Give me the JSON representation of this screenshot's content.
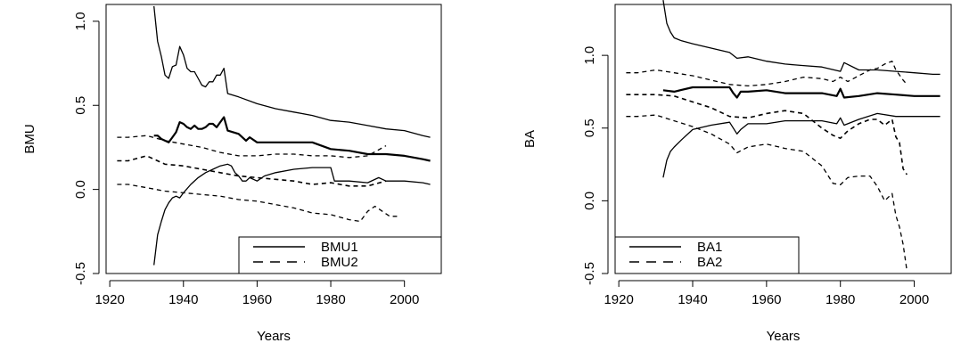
{
  "chart_data": [
    {
      "type": "line",
      "title": "",
      "xlabel": "Years",
      "ylabel": "BMU",
      "xlim": [
        1919,
        2010
      ],
      "ylim": [
        -0.5,
        1.1
      ],
      "x_ticks": [
        1920,
        1940,
        1960,
        1980,
        2000
      ],
      "y_ticks": [
        -0.5,
        0.0,
        0.5,
        1.0
      ],
      "x_tick_labels": [
        "1920",
        "1940",
        "1960",
        "1980",
        "2000"
      ],
      "y_tick_labels": [
        "-0.5",
        "0.0",
        "0.5",
        "1.0"
      ],
      "grid": false,
      "legend_position": "bottom-right",
      "legend": [
        {
          "name": "BMU1",
          "style": "solid"
        },
        {
          "name": "BMU2",
          "style": "dashed"
        }
      ],
      "series": [
        {
          "group": "BMU1",
          "role": "upper",
          "style": "solid",
          "width": 1.3,
          "x": [
            1932,
            1933,
            1934,
            1935,
            1936,
            1937,
            1938,
            1939,
            1940,
            1941,
            1942,
            1943,
            1944,
            1945,
            1946,
            1947,
            1948,
            1949,
            1950,
            1951,
            1952,
            1955,
            1960,
            1965,
            1970,
            1975,
            1980,
            1985,
            1990,
            1995,
            2000,
            2005,
            2007
          ],
          "y": [
            1.09,
            0.88,
            0.79,
            0.68,
            0.66,
            0.73,
            0.74,
            0.85,
            0.8,
            0.72,
            0.7,
            0.7,
            0.66,
            0.62,
            0.61,
            0.64,
            0.64,
            0.68,
            0.68,
            0.72,
            0.57,
            0.55,
            0.51,
            0.48,
            0.46,
            0.44,
            0.41,
            0.4,
            0.38,
            0.36,
            0.35,
            0.32,
            0.31
          ]
        },
        {
          "group": "BMU1",
          "role": "estimate",
          "style": "solid",
          "width": 2.2,
          "x": [
            1932,
            1933,
            1934,
            1935,
            1936,
            1937,
            1938,
            1939,
            1940,
            1941,
            1942,
            1943,
            1944,
            1945,
            1946,
            1947,
            1948,
            1949,
            1950,
            1951,
            1952,
            1955,
            1957,
            1958,
            1960,
            1965,
            1970,
            1975,
            1980,
            1985,
            1990,
            1995,
            2000,
            2005,
            2007
          ],
          "y": [
            0.32,
            0.32,
            0.3,
            0.29,
            0.28,
            0.31,
            0.34,
            0.4,
            0.39,
            0.37,
            0.36,
            0.38,
            0.36,
            0.36,
            0.37,
            0.39,
            0.39,
            0.37,
            0.4,
            0.43,
            0.35,
            0.33,
            0.29,
            0.31,
            0.28,
            0.28,
            0.28,
            0.28,
            0.24,
            0.23,
            0.21,
            0.21,
            0.2,
            0.18,
            0.17
          ]
        },
        {
          "group": "BMU1",
          "role": "lower",
          "style": "solid",
          "width": 1.3,
          "x": [
            1932,
            1933,
            1934,
            1935,
            1936,
            1937,
            1938,
            1939,
            1940,
            1942,
            1944,
            1946,
            1948,
            1950,
            1952,
            1953,
            1954,
            1955,
            1956,
            1957,
            1958,
            1960,
            1962,
            1965,
            1970,
            1975,
            1980,
            1981,
            1985,
            1990,
            1993,
            1995,
            2000,
            2005,
            2007
          ],
          "y": [
            -0.45,
            -0.27,
            -0.19,
            -0.12,
            -0.08,
            -0.05,
            -0.04,
            -0.05,
            -0.02,
            0.03,
            0.07,
            0.1,
            0.12,
            0.14,
            0.15,
            0.14,
            0.1,
            0.08,
            0.05,
            0.05,
            0.07,
            0.05,
            0.08,
            0.1,
            0.12,
            0.13,
            0.13,
            0.05,
            0.05,
            0.04,
            0.07,
            0.05,
            0.05,
            0.04,
            0.03
          ]
        },
        {
          "group": "BMU2",
          "role": "upper",
          "style": "dashed",
          "width": 1.3,
          "x": [
            1922,
            1925,
            1930,
            1935,
            1940,
            1945,
            1950,
            1955,
            1960,
            1965,
            1970,
            1975,
            1980,
            1985,
            1990,
            1995
          ],
          "y": [
            0.31,
            0.31,
            0.32,
            0.29,
            0.27,
            0.25,
            0.22,
            0.2,
            0.2,
            0.21,
            0.21,
            0.2,
            0.2,
            0.19,
            0.2,
            0.26
          ]
        },
        {
          "group": "BMU2",
          "role": "estimate",
          "style": "dashed",
          "width": 1.6,
          "x": [
            1922,
            1925,
            1930,
            1935,
            1940,
            1945,
            1950,
            1955,
            1960,
            1965,
            1970,
            1975,
            1980,
            1985,
            1990,
            1995
          ],
          "y": [
            0.17,
            0.17,
            0.2,
            0.15,
            0.14,
            0.12,
            0.1,
            0.08,
            0.07,
            0.06,
            0.05,
            0.03,
            0.04,
            0.02,
            0.02,
            0.05
          ]
        },
        {
          "group": "BMU2",
          "role": "lower",
          "style": "dashed",
          "width": 1.3,
          "x": [
            1922,
            1925,
            1930,
            1935,
            1940,
            1945,
            1950,
            1955,
            1960,
            1965,
            1970,
            1975,
            1980,
            1985,
            1988,
            1990,
            1992,
            1994,
            1996,
            1998
          ],
          "y": [
            0.03,
            0.03,
            0.01,
            -0.01,
            -0.02,
            -0.03,
            -0.04,
            -0.06,
            -0.07,
            -0.09,
            -0.11,
            -0.14,
            -0.15,
            -0.18,
            -0.19,
            -0.13,
            -0.1,
            -0.13,
            -0.16,
            -0.16
          ]
        }
      ]
    },
    {
      "type": "line",
      "title": "",
      "xlabel": "Years",
      "ylabel": "BA",
      "xlim": [
        1919,
        2010
      ],
      "ylim": [
        -0.5,
        1.35
      ],
      "x_ticks": [
        1920,
        1940,
        1960,
        1980,
        2000
      ],
      "y_ticks": [
        -0.5,
        0.0,
        0.5,
        1.0
      ],
      "x_tick_labels": [
        "1920",
        "1940",
        "1960",
        "1980",
        "2000"
      ],
      "y_tick_labels": [
        "-0.5",
        "0.0",
        "0.5",
        "1.0"
      ],
      "grid": false,
      "legend_position": "bottom-left",
      "legend": [
        {
          "name": "BA1",
          "style": "solid"
        },
        {
          "name": "BA2",
          "style": "dashed"
        }
      ],
      "series": [
        {
          "group": "BA1",
          "role": "upper",
          "style": "solid",
          "width": 1.3,
          "x": [
            1932,
            1933,
            1934,
            1935,
            1937,
            1940,
            1945,
            1950,
            1952,
            1955,
            1960,
            1965,
            1970,
            1975,
            1980,
            1981,
            1985,
            1990,
            1995,
            2000,
            2005,
            2007
          ],
          "y": [
            1.38,
            1.22,
            1.16,
            1.12,
            1.1,
            1.08,
            1.05,
            1.02,
            0.98,
            0.99,
            0.96,
            0.94,
            0.93,
            0.92,
            0.89,
            0.95,
            0.9,
            0.9,
            0.89,
            0.88,
            0.87,
            0.87
          ]
        },
        {
          "group": "BA1",
          "role": "estimate",
          "style": "solid",
          "width": 2.2,
          "x": [
            1932,
            1935,
            1940,
            1945,
            1950,
            1951,
            1952,
            1953,
            1955,
            1960,
            1965,
            1970,
            1975,
            1979,
            1980,
            1981,
            1985,
            1990,
            1995,
            2000,
            2005,
            2007
          ],
          "y": [
            0.76,
            0.75,
            0.78,
            0.78,
            0.78,
            0.74,
            0.71,
            0.75,
            0.75,
            0.76,
            0.74,
            0.74,
            0.74,
            0.72,
            0.77,
            0.71,
            0.72,
            0.74,
            0.73,
            0.72,
            0.72,
            0.72
          ]
        },
        {
          "group": "BA1",
          "role": "lower",
          "style": "solid",
          "width": 1.3,
          "x": [
            1932,
            1933,
            1934,
            1935,
            1937,
            1940,
            1945,
            1950,
            1951,
            1952,
            1953,
            1955,
            1960,
            1965,
            1970,
            1975,
            1979,
            1980,
            1981,
            1985,
            1990,
            1995,
            2000,
            2005,
            2007
          ],
          "y": [
            0.16,
            0.28,
            0.34,
            0.37,
            0.42,
            0.49,
            0.52,
            0.54,
            0.5,
            0.46,
            0.49,
            0.53,
            0.53,
            0.55,
            0.55,
            0.55,
            0.53,
            0.57,
            0.52,
            0.56,
            0.6,
            0.58,
            0.58,
            0.58,
            0.58
          ]
        },
        {
          "group": "BA2",
          "role": "upper",
          "style": "dashed",
          "width": 1.3,
          "x": [
            1922,
            1925,
            1930,
            1935,
            1940,
            1945,
            1950,
            1955,
            1960,
            1965,
            1970,
            1975,
            1978,
            1980,
            1982,
            1985,
            1988,
            1990,
            1992,
            1994,
            1995,
            1997,
            1998
          ],
          "y": [
            0.88,
            0.88,
            0.9,
            0.88,
            0.86,
            0.83,
            0.8,
            0.79,
            0.8,
            0.82,
            0.85,
            0.84,
            0.82,
            0.85,
            0.82,
            0.86,
            0.9,
            0.91,
            0.94,
            0.96,
            0.9,
            0.83,
            0.8
          ]
        },
        {
          "group": "BA2",
          "role": "estimate",
          "style": "dashed",
          "width": 1.6,
          "x": [
            1922,
            1925,
            1930,
            1935,
            1940,
            1945,
            1950,
            1955,
            1960,
            1965,
            1970,
            1975,
            1978,
            1980,
            1982,
            1985,
            1988,
            1990,
            1992,
            1994,
            1995,
            1996,
            1997,
            1998
          ],
          "y": [
            0.73,
            0.73,
            0.73,
            0.72,
            0.68,
            0.64,
            0.58,
            0.57,
            0.6,
            0.62,
            0.6,
            0.5,
            0.45,
            0.43,
            0.48,
            0.53,
            0.56,
            0.56,
            0.52,
            0.56,
            0.44,
            0.4,
            0.22,
            0.18
          ]
        },
        {
          "group": "BA2",
          "role": "lower",
          "style": "dashed",
          "width": 1.3,
          "x": [
            1922,
            1925,
            1930,
            1935,
            1940,
            1945,
            1950,
            1952,
            1955,
            1960,
            1965,
            1970,
            1975,
            1978,
            1980,
            1982,
            1985,
            1988,
            1990,
            1992,
            1994,
            1995,
            1996,
            1997,
            1998
          ],
          "y": [
            0.58,
            0.58,
            0.59,
            0.55,
            0.51,
            0.46,
            0.39,
            0.33,
            0.37,
            0.39,
            0.36,
            0.34,
            0.24,
            0.12,
            0.11,
            0.16,
            0.17,
            0.17,
            0.1,
            0.0,
            0.05,
            -0.1,
            -0.18,
            -0.3,
            -0.48
          ]
        }
      ]
    }
  ]
}
